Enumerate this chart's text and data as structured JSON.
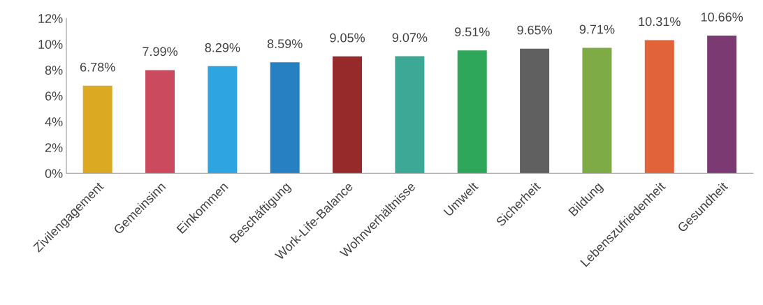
{
  "chart_data": {
    "type": "bar",
    "categories": [
      "Zivilengagement",
      "Gemeinsinn",
      "Einkommen",
      "Beschäftigung",
      "Work-Life-Balance",
      "Wohnverhältnisse",
      "Umwelt",
      "Sicherheit",
      "Bildung",
      "Lebenszufriedenheit",
      "Gesundheit"
    ],
    "values": [
      6.78,
      7.99,
      8.29,
      8.59,
      9.05,
      9.07,
      9.51,
      9.65,
      9.71,
      10.31,
      10.66
    ],
    "colors": [
      "#dba922",
      "#cc4a5e",
      "#2ea4e0",
      "#2680c2",
      "#962a2a",
      "#3ea896",
      "#2ea75a",
      "#606060",
      "#7eab45",
      "#e0633a",
      "#7b3a72"
    ],
    "value_labels": [
      "6.78%",
      "7.99%",
      "8.29%",
      "8.59%",
      "9.05%",
      "9.07%",
      "9.51%",
      "9.65%",
      "9.71%",
      "10.31%",
      "10.66%"
    ],
    "ylim": [
      0,
      12
    ],
    "yticks": [
      {
        "value": 0,
        "label": "0%"
      },
      {
        "value": 2,
        "label": "2%"
      },
      {
        "value": 4,
        "label": "4%"
      },
      {
        "value": 6,
        "label": "6%"
      },
      {
        "value": 8,
        "label": "8%"
      },
      {
        "value": 10,
        "label": "10%"
      },
      {
        "value": 12,
        "label": "12%"
      }
    ],
    "grid": false,
    "legend": false
  }
}
